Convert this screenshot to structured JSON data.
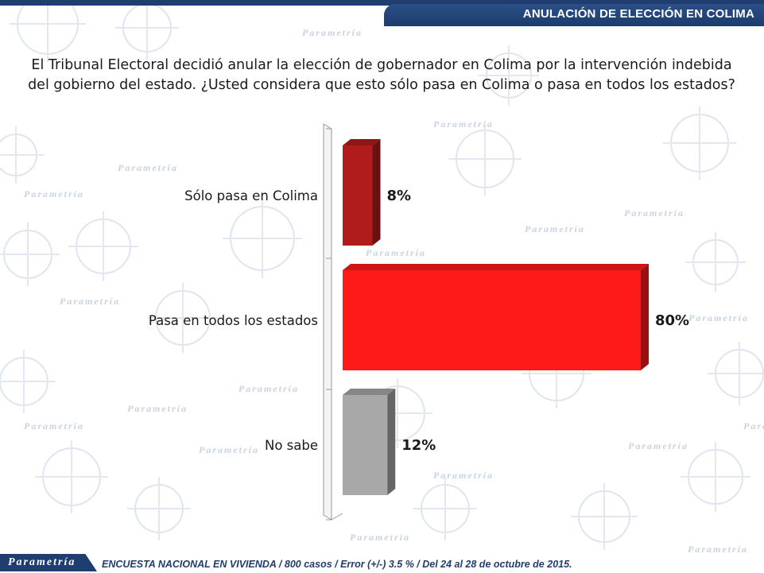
{
  "header": {
    "title": "ANULACIÓN DE ELECCIÓN EN COLIMA"
  },
  "question": "El Tribunal Electoral decidió anular la elección de gobernador en Colima por la intervención indebida del gobierno del estado. ¿Usted considera que esto sólo pasa en Colima o pasa en todos los estados?",
  "watermark": "Parametría",
  "footer": {
    "logo": "Parametría",
    "note": "ENCUESTA NACIONAL EN VIVIENDA / 800 casos / Error (+/-) 3.5 % / Del 24 al 28 de octubre de 2015."
  },
  "colors": {
    "navy": "#1f3d6e",
    "bar_colima": "#b01c1c",
    "bar_todos": "#ff1a1a",
    "bar_nosabe": "#a8a8a8"
  },
  "chart_data": {
    "type": "bar",
    "orientation": "horizontal",
    "categories": [
      "Sólo pasa en Colima",
      "Pasa en todos los estados",
      "No sabe"
    ],
    "values": [
      8,
      80,
      12
    ],
    "labels": [
      "8%",
      "80%",
      "12%"
    ],
    "colors": [
      "#b01c1c",
      "#ff1a1a",
      "#a8a8a8"
    ],
    "xlim": [
      0,
      80
    ],
    "grid": false,
    "legend": "none",
    "style": "3d"
  }
}
